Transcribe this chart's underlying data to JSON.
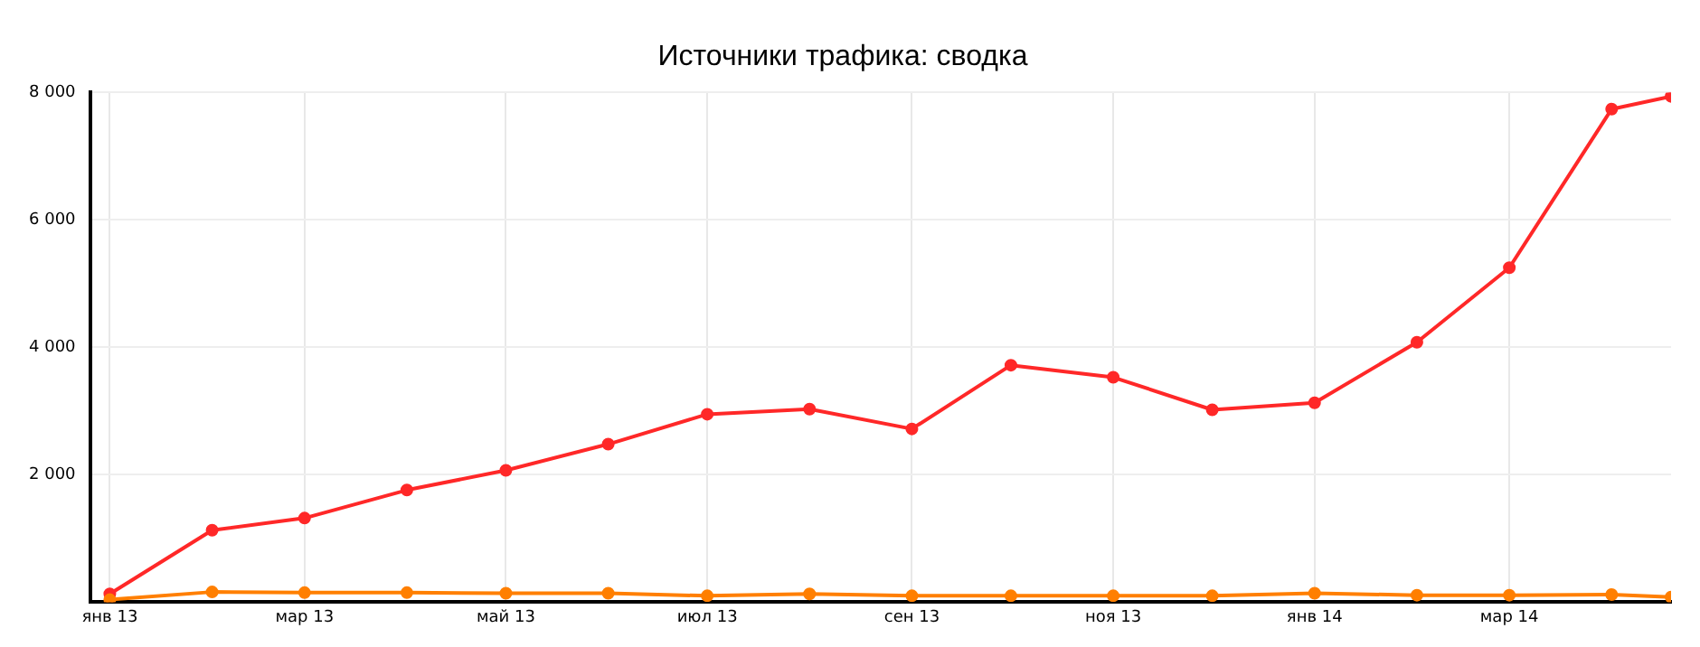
{
  "chart_data": {
    "type": "line",
    "title": "Источники трафика: сводка",
    "x": [
      "2013-01-01",
      "2013-02-01",
      "2013-03-01",
      "2013-04-01",
      "2013-05-01",
      "2013-06-01",
      "2013-07-01",
      "2013-08-01",
      "2013-09-01",
      "2013-10-01",
      "2013-11-01",
      "2013-12-01",
      "2014-01-01",
      "2014-02-01",
      "2014-03-01",
      "2014-04-01",
      "2014-04-19"
    ],
    "series": [
      {
        "color": "#ff2828",
        "values": [
          130,
          1130,
          1320,
          1760,
          2070,
          2480,
          2950,
          3030,
          2720,
          3720,
          3530,
          3020,
          3130,
          4080,
          5250,
          7740,
          7940
        ]
      },
      {
        "color": "#ff7f00",
        "values": [
          40,
          160,
          150,
          150,
          140,
          140,
          100,
          130,
          100,
          100,
          100,
          100,
          140,
          110,
          110,
          120,
          80
        ]
      }
    ],
    "xlim": [
      "2012-12-26",
      "2014-04-19"
    ],
    "xticks": [
      {
        "value": "2013-01-01",
        "label": "янв 13"
      },
      {
        "value": "2013-03-01",
        "label": "мар 13"
      },
      {
        "value": "2013-05-01",
        "label": "май 13"
      },
      {
        "value": "2013-07-01",
        "label": "июл 13"
      },
      {
        "value": "2013-09-01",
        "label": "сен 13"
      },
      {
        "value": "2013-11-01",
        "label": "ноя 13"
      },
      {
        "value": "2014-01-01",
        "label": "янв 14"
      },
      {
        "value": "2014-03-01",
        "label": "мар 14"
      }
    ],
    "ylim": [
      0,
      8000
    ],
    "yticks": [
      {
        "value": 2000,
        "label": "2 000"
      },
      {
        "value": 4000,
        "label": "4 000"
      },
      {
        "value": 6000,
        "label": "6 000"
      },
      {
        "value": 8000,
        "label": "8 000"
      }
    ],
    "grid": true,
    "legend": false,
    "marker": "circle",
    "line_style": "solid"
  }
}
